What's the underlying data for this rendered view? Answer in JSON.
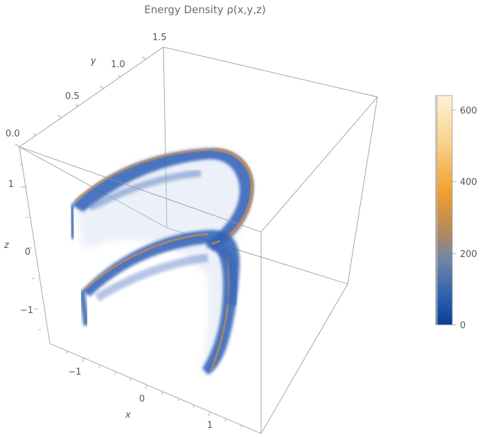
{
  "chart_data": {
    "type": "3d-density",
    "title": "Energy Density ρ(x,y,z)",
    "xlabel": "x",
    "ylabel": "y",
    "zlabel": "z",
    "x_ticks": [
      "−1",
      "0",
      "1"
    ],
    "y_ticks": [
      "0.0",
      "0.5",
      "1.0",
      "1.5"
    ],
    "z_ticks": [
      "1",
      "0",
      "−1"
    ],
    "colorbar": {
      "ticks": [
        "0",
        "200",
        "400",
        "600"
      ],
      "range": [
        0,
        640
      ],
      "colors": [
        "#0c3f8f",
        "#3f6fbf",
        "#7a8fa8",
        "#c9925a",
        "#f0a030",
        "#f8d08a",
        "#fff3d6"
      ]
    }
  }
}
